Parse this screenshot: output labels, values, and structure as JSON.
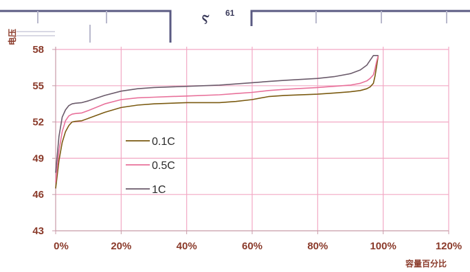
{
  "header": {
    "symbol": "Ⲋ",
    "number": "61"
  },
  "chart_data": {
    "type": "line",
    "ylabel": "电压",
    "xlabel": "容量百分比",
    "xlim": [
      0,
      120
    ],
    "ylim": [
      43,
      58
    ],
    "x_ticks": [
      "0%",
      "20%",
      "40%",
      "60%",
      "80%",
      "100%",
      "120%"
    ],
    "y_ticks": [
      "43",
      "46",
      "49",
      "52",
      "55",
      "58"
    ],
    "grid": true,
    "legend_position": "center-left",
    "series": [
      {
        "name": "0.1C",
        "color": "#7a5a10",
        "x": [
          0,
          1,
          2,
          3,
          4,
          5,
          6,
          8,
          10,
          15,
          20,
          25,
          30,
          35,
          40,
          50,
          55,
          60,
          65,
          70,
          80,
          85,
          90,
          93,
          95,
          96,
          97,
          97.5,
          98,
          98.5
        ],
        "y": [
          46.5,
          48.8,
          50.3,
          51.2,
          51.7,
          52.0,
          52.05,
          52.1,
          52.3,
          52.8,
          53.2,
          53.4,
          53.5,
          53.55,
          53.6,
          53.6,
          53.7,
          53.85,
          54.1,
          54.2,
          54.3,
          54.4,
          54.5,
          54.6,
          54.75,
          54.9,
          55.2,
          55.8,
          56.6,
          57.5
        ]
      },
      {
        "name": "0.5C",
        "color": "#e8709a",
        "x": [
          0,
          1,
          2,
          3,
          4,
          5,
          6,
          8,
          10,
          15,
          20,
          25,
          30,
          35,
          40,
          50,
          55,
          60,
          65,
          70,
          80,
          85,
          90,
          93,
          95,
          96,
          97,
          97.5,
          98,
          98.5
        ],
        "y": [
          47.0,
          49.6,
          51.2,
          52.1,
          52.5,
          52.65,
          52.7,
          52.75,
          52.95,
          53.5,
          53.85,
          54.0,
          54.05,
          54.1,
          54.15,
          54.25,
          54.35,
          54.45,
          54.6,
          54.7,
          54.85,
          54.95,
          55.05,
          55.2,
          55.4,
          55.6,
          55.9,
          56.4,
          57.0,
          57.5
        ]
      },
      {
        "name": "1C",
        "color": "#6a5a6a",
        "x": [
          0,
          1,
          2,
          3,
          4,
          5,
          6,
          8,
          10,
          15,
          20,
          25,
          30,
          35,
          40,
          50,
          55,
          60,
          65,
          70,
          80,
          85,
          90,
          93,
          95,
          96,
          97,
          98,
          98.5
        ],
        "y": [
          47.8,
          50.8,
          52.4,
          53.0,
          53.35,
          53.5,
          53.55,
          53.6,
          53.75,
          54.2,
          54.55,
          54.75,
          54.85,
          54.9,
          54.95,
          55.05,
          55.15,
          55.25,
          55.35,
          55.45,
          55.6,
          55.75,
          56.0,
          56.3,
          56.7,
          57.1,
          57.5,
          57.5,
          57.5
        ]
      }
    ]
  }
}
